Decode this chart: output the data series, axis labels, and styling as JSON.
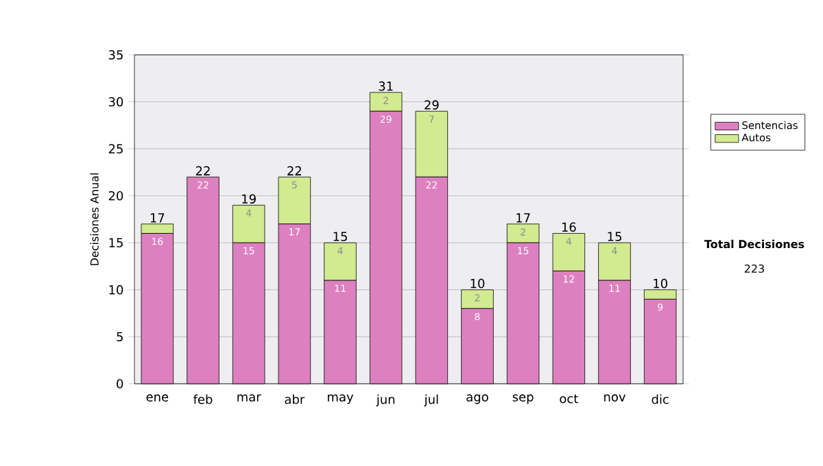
{
  "chart_data": {
    "type": "bar",
    "stacked": true,
    "ylabel": "Decisiones Anual",
    "categories": [
      "ene",
      "feb",
      "mar",
      "abr",
      "may",
      "jun",
      "jul",
      "ago",
      "sep",
      "oct",
      "nov",
      "dic"
    ],
    "series": [
      {
        "name": "Sentencias",
        "color": "#dd80c0",
        "values": [
          16,
          22,
          15,
          17,
          11,
          29,
          22,
          8,
          15,
          12,
          11,
          9
        ],
        "value_labels": [
          "16",
          "22",
          "15",
          "17",
          "11",
          "29",
          "22",
          "8",
          "15",
          "12",
          "11",
          "9"
        ]
      },
      {
        "name": "Autos",
        "color": "#d2ea90",
        "values": [
          1,
          0,
          4,
          5,
          4,
          2,
          7,
          2,
          2,
          4,
          4,
          1
        ],
        "value_labels": [
          null,
          null,
          "4",
          "5",
          "4",
          "2",
          "7",
          "2",
          "2",
          "4",
          "4",
          null
        ]
      }
    ],
    "totals": [
      "17",
      "22",
      "19",
      "22",
      "15",
      "31",
      "29",
      "10",
      "17",
      "16",
      "15",
      "10"
    ],
    "ylim": [
      0,
      35
    ],
    "yticks": [
      0,
      5,
      10,
      15,
      20,
      25,
      30,
      35
    ],
    "grid": "y",
    "legend": "right",
    "annotations": [
      "Total Decisiones",
      "223"
    ]
  }
}
